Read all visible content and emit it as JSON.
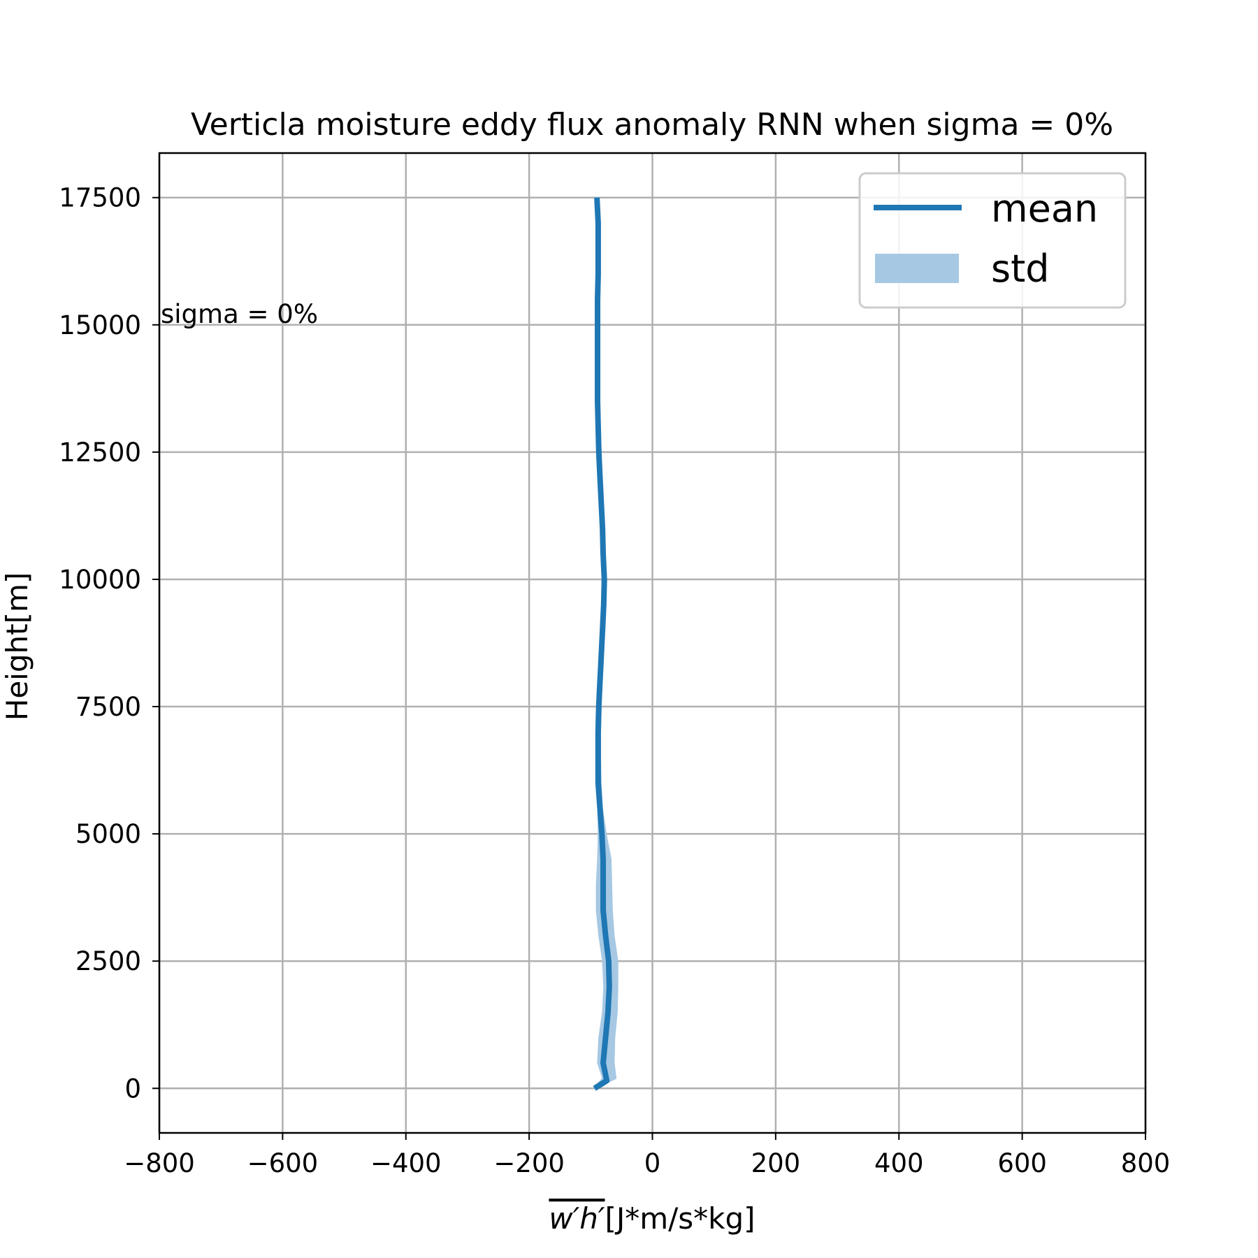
{
  "chart_data": {
    "type": "line",
    "title": "Verticla moisture eddy flux anomaly RNN when sigma = 0%",
    "xlabel_overline": "w′h′",
    "xlabel": "[J*m/s*kg]",
    "ylabel": "Height[m]",
    "xlim": [
      -800,
      800
    ],
    "ylim": [
      -875,
      18375
    ],
    "xticks": [
      -800,
      -600,
      -400,
      -200,
      0,
      200,
      400,
      600,
      800
    ],
    "xtick_labels": [
      "−800",
      "−600",
      "−400",
      "−200",
      "0",
      "200",
      "400",
      "600",
      "800"
    ],
    "yticks": [
      0,
      2500,
      5000,
      7500,
      10000,
      12500,
      15000,
      17500
    ],
    "ytick_labels": [
      "0",
      "2500",
      "5000",
      "7500",
      "10000",
      "12500",
      "15000",
      "17500"
    ],
    "grid": true,
    "legend_position": "top-right",
    "annotation": "sigma = 0%",
    "colors": {
      "mean": "#1f77b4",
      "std": "#a6c8e3"
    },
    "series": [
      {
        "name": "mean",
        "points": [
          [
            -94,
            0
          ],
          [
            -74,
            150
          ],
          [
            -80,
            500
          ],
          [
            -76,
            1000
          ],
          [
            -72,
            1500
          ],
          [
            -70,
            2000
          ],
          [
            -71,
            2500
          ],
          [
            -76,
            3000
          ],
          [
            -80,
            3500
          ],
          [
            -80,
            4000
          ],
          [
            -80,
            4500
          ],
          [
            -82,
            5000
          ],
          [
            -85,
            5500
          ],
          [
            -88,
            6000
          ],
          [
            -88,
            6500
          ],
          [
            -88,
            7000
          ],
          [
            -87,
            7500
          ],
          [
            -85,
            8000
          ],
          [
            -83,
            8500
          ],
          [
            -81,
            9000
          ],
          [
            -79,
            9500
          ],
          [
            -78,
            10000
          ],
          [
            -80,
            10500
          ],
          [
            -81,
            11000
          ],
          [
            -83,
            11500
          ],
          [
            -85,
            12000
          ],
          [
            -87,
            12500
          ],
          [
            -88,
            13000
          ],
          [
            -89,
            13500
          ],
          [
            -89,
            14000
          ],
          [
            -89,
            14500
          ],
          [
            -89,
            15000
          ],
          [
            -89,
            15500
          ],
          [
            -88,
            16000
          ],
          [
            -88,
            16500
          ],
          [
            -88,
            17000
          ],
          [
            -90,
            17500
          ]
        ]
      },
      {
        "name": "std",
        "upper": [
          [
            -94,
            0
          ],
          [
            -60,
            200
          ],
          [
            -63,
            500
          ],
          [
            -62,
            1000
          ],
          [
            -58,
            1500
          ],
          [
            -57,
            2000
          ],
          [
            -57,
            2500
          ],
          [
            -63,
            3000
          ],
          [
            -66,
            3500
          ],
          [
            -67,
            4000
          ],
          [
            -68,
            4500
          ],
          [
            -76,
            5000
          ],
          [
            -82,
            5500
          ],
          [
            -84,
            6000
          ],
          [
            -85,
            6500
          ],
          [
            -85,
            7000
          ],
          [
            -84,
            7500
          ],
          [
            -83,
            8000
          ],
          [
            -81,
            8500
          ],
          [
            -79,
            9000
          ],
          [
            -78,
            9500
          ],
          [
            -77,
            10000
          ],
          [
            -79,
            10500
          ],
          [
            -80,
            11000
          ],
          [
            -82,
            11500
          ],
          [
            -84,
            12000
          ],
          [
            -86,
            12500
          ],
          [
            -87,
            13000
          ],
          [
            -88,
            13500
          ],
          [
            -88,
            14000
          ],
          [
            -88,
            14500
          ],
          [
            -88,
            15000
          ],
          [
            -88,
            15500
          ],
          [
            -87,
            16000
          ],
          [
            -87,
            16500
          ],
          [
            -87,
            17000
          ],
          [
            -89,
            17500
          ]
        ],
        "lower": [
          [
            -94,
            0
          ],
          [
            -80,
            200
          ],
          [
            -88,
            500
          ],
          [
            -86,
            1000
          ],
          [
            -80,
            1500
          ],
          [
            -78,
            2000
          ],
          [
            -80,
            2500
          ],
          [
            -86,
            3000
          ],
          [
            -90,
            3500
          ],
          [
            -90,
            4000
          ],
          [
            -88,
            4500
          ],
          [
            -87,
            5000
          ],
          [
            -88,
            5500
          ],
          [
            -91,
            6000
          ],
          [
            -91,
            6500
          ],
          [
            -91,
            7000
          ],
          [
            -90,
            7500
          ],
          [
            -88,
            8000
          ],
          [
            -85,
            8500
          ],
          [
            -83,
            9000
          ],
          [
            -80,
            9500
          ],
          [
            -79,
            10000
          ],
          [
            -81,
            10500
          ],
          [
            -82,
            11000
          ],
          [
            -84,
            11500
          ],
          [
            -86,
            12000
          ],
          [
            -88,
            12500
          ],
          [
            -89,
            13000
          ],
          [
            -90,
            13500
          ],
          [
            -90,
            14000
          ],
          [
            -90,
            14500
          ],
          [
            -90,
            15000
          ],
          [
            -90,
            15500
          ],
          [
            -89,
            16000
          ],
          [
            -89,
            16500
          ],
          [
            -89,
            17000
          ],
          [
            -91,
            17500
          ]
        ]
      }
    ]
  }
}
